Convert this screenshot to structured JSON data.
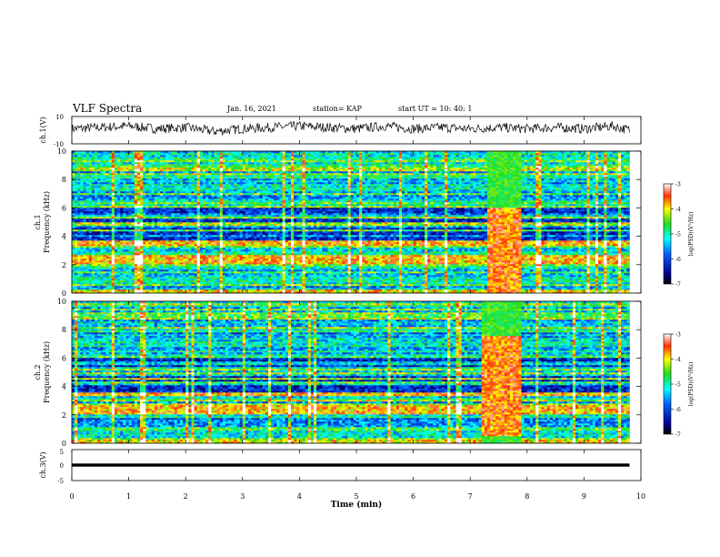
{
  "header": {
    "title": "VLF Spectra",
    "date": "Jan. 16, 2021",
    "station": "station= KAP",
    "start": "start UT =  10: 40: 1"
  },
  "chart_data": [
    {
      "type": "line",
      "panel": "ch1-waveform",
      "ylabel": "ch.1(V)",
      "ylim": [
        -10,
        10
      ],
      "yticks": [
        "10",
        "-10"
      ],
      "x": [
        0,
        0.5,
        1,
        1.5,
        2,
        2.5,
        3,
        3.5,
        4,
        4.5,
        5,
        5.5,
        6,
        6.5,
        7,
        7.5,
        8,
        8.5,
        9,
        9.5,
        9.8
      ],
      "y": [
        1,
        2,
        3,
        1,
        2,
        -1,
        1,
        2,
        3,
        2,
        1,
        3,
        1,
        2,
        1,
        2,
        1,
        2,
        1,
        3,
        0
      ],
      "amplitude_band": [
        -4,
        6
      ]
    },
    {
      "type": "heatmap",
      "panel": "ch1-spectrogram",
      "ylabel": "ch.1\nFrequency (kHz)",
      "ylim": [
        0,
        10
      ],
      "yticks": [
        "0",
        "2",
        "4",
        "6",
        "8",
        "10"
      ],
      "xlim": [
        0,
        10
      ],
      "data_end_min": 9.8,
      "colorscale": "jet",
      "colorbar": {
        "label": "log(PSD)(V²/Hz)",
        "range": [
          -7,
          -3
        ],
        "ticks": [
          "-3",
          "-4",
          "-5",
          "-6",
          "-7"
        ]
      },
      "intense_interval_min": [
        7.3,
        7.9
      ],
      "intense_freq_khz": [
        0,
        6.0
      ]
    },
    {
      "type": "heatmap",
      "panel": "ch2-spectrogram",
      "ylabel": "ch.2\nFrequency (kHz)",
      "ylim": [
        0,
        10
      ],
      "yticks": [
        "0",
        "2",
        "4",
        "6",
        "8",
        "10"
      ],
      "xlim": [
        0,
        10
      ],
      "data_end_min": 9.8,
      "colorscale": "jet",
      "colorbar": {
        "label": "log(PSD)(V²/Hz)",
        "range": [
          -7,
          -3
        ],
        "ticks": [
          "-3",
          "-4",
          "-5",
          "-6",
          "-7"
        ]
      },
      "intense_interval_min": [
        7.2,
        7.9
      ],
      "intense_freq_khz": [
        0.5,
        7.5
      ]
    },
    {
      "type": "line",
      "panel": "ch3-waveform",
      "ylabel": "ch.3(V)",
      "ylim": [
        -5,
        5
      ],
      "yticks": [
        "5",
        "0",
        "-5"
      ],
      "x": [
        0,
        9.8
      ],
      "y": [
        0,
        0
      ],
      "amplitude_band": [
        -0.5,
        0.5
      ]
    }
  ],
  "xaxis": {
    "label": "Time (min)",
    "xlim": [
      0,
      10
    ],
    "ticks": [
      "0",
      "1",
      "2",
      "3",
      "4",
      "5",
      "6",
      "7",
      "8",
      "9",
      "10"
    ]
  }
}
